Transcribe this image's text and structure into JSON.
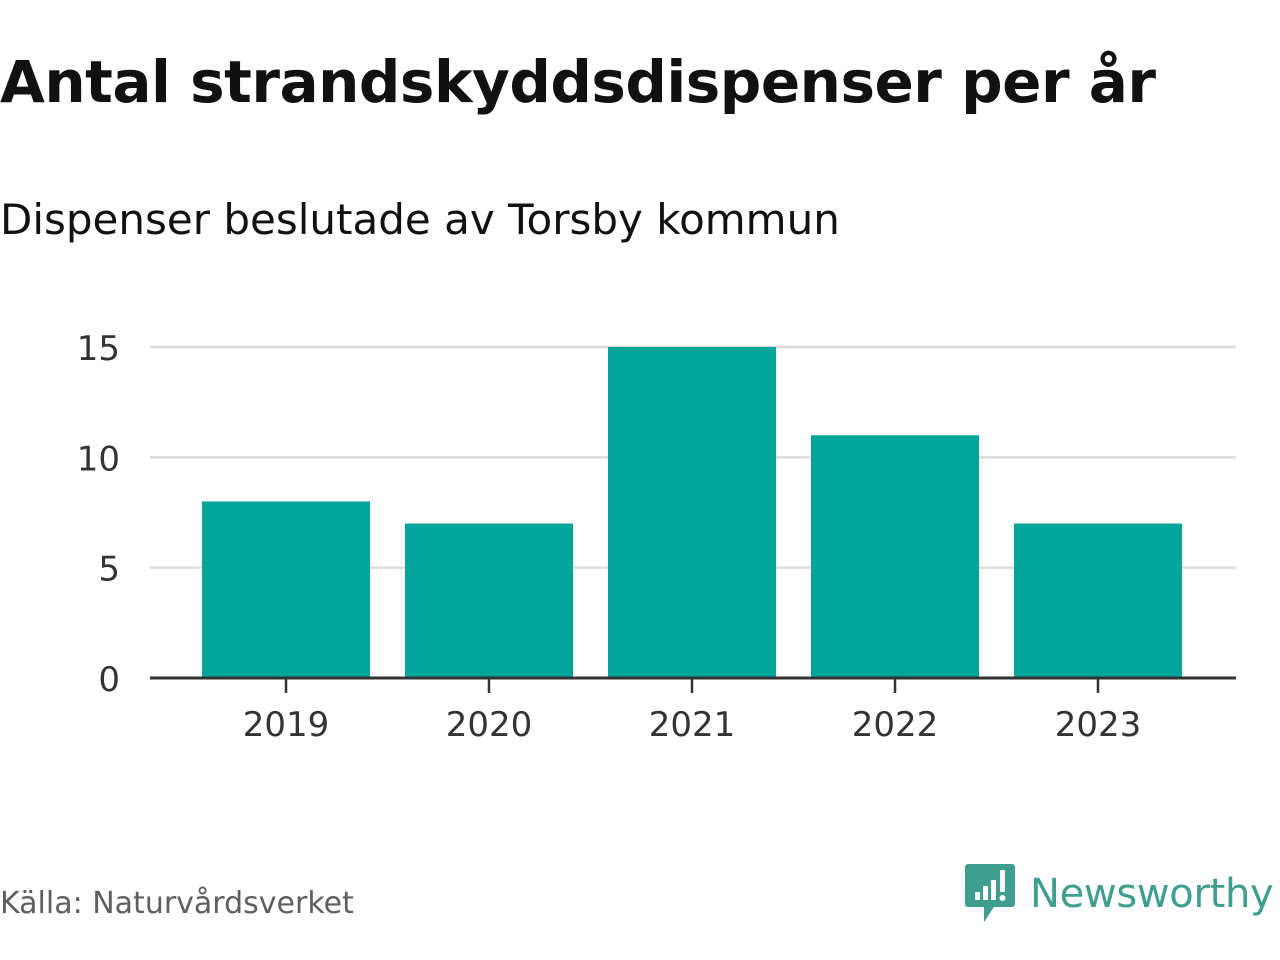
{
  "header": {
    "title": "Antal strandskyddsdispenser per år",
    "subtitle": "Dispenser beslutade av Torsby kommun"
  },
  "footer": {
    "source": "Källa: Naturvårdsverket",
    "brand": "Newsworthy",
    "brand_icon": "newsworthy-logo-icon"
  },
  "colors": {
    "bar": "#00a59a",
    "grid": "#dcdcdc",
    "axis": "#333333",
    "brand": "#3f9e8e",
    "text": "#111111",
    "source_text": "#5f5f5f"
  },
  "chart_data": {
    "type": "bar",
    "categories": [
      "2019",
      "2020",
      "2021",
      "2022",
      "2023"
    ],
    "values": [
      8,
      7,
      15,
      11,
      7
    ],
    "title": "Antal strandskyddsdispenser per år",
    "subtitle": "Dispenser beslutade av Torsby kommun",
    "xlabel": "",
    "ylabel": "",
    "ylim": [
      0,
      15
    ],
    "yticks": [
      0,
      5,
      10,
      15
    ],
    "grid": true,
    "legend": "none"
  }
}
